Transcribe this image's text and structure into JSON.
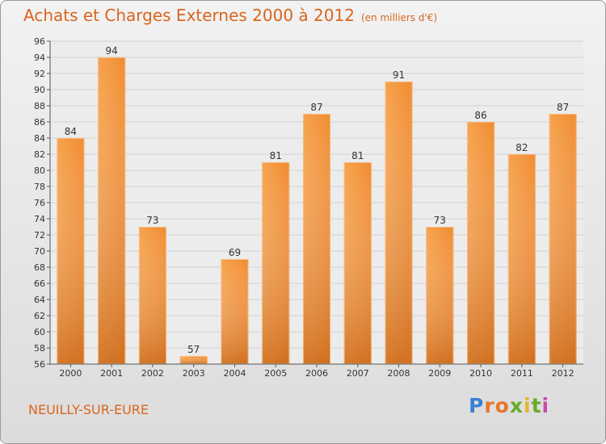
{
  "header": {
    "title": "Achats et Charges Externes 2000 à 2012",
    "subtitle": "(en milliers d'€)"
  },
  "footer": {
    "location": "NEUILLY-SUR-EURE",
    "logo_letters": [
      "P",
      "r",
      "o",
      "x",
      "i",
      "t",
      "i"
    ]
  },
  "colors": {
    "bar_light": "#f6a24e",
    "bar_dark": "#d06e1e",
    "title": "#d9651d"
  },
  "chart_data": {
    "type": "bar",
    "title": "Achats et Charges Externes 2000 à 2012",
    "subtitle": "(en milliers d'€)",
    "xlabel": "",
    "ylabel": "",
    "categories": [
      "2000",
      "2001",
      "2002",
      "2003",
      "2004",
      "2005",
      "2006",
      "2007",
      "2008",
      "2009",
      "2010",
      "2011",
      "2012"
    ],
    "values": [
      84,
      94,
      73,
      57,
      69,
      81,
      87,
      81,
      91,
      73,
      86,
      82,
      87
    ],
    "ylim": [
      56,
      96
    ],
    "yticks": [
      56,
      58,
      60,
      62,
      64,
      66,
      68,
      70,
      72,
      74,
      76,
      78,
      80,
      82,
      84,
      86,
      88,
      90,
      92,
      94,
      96
    ],
    "grid": true
  }
}
